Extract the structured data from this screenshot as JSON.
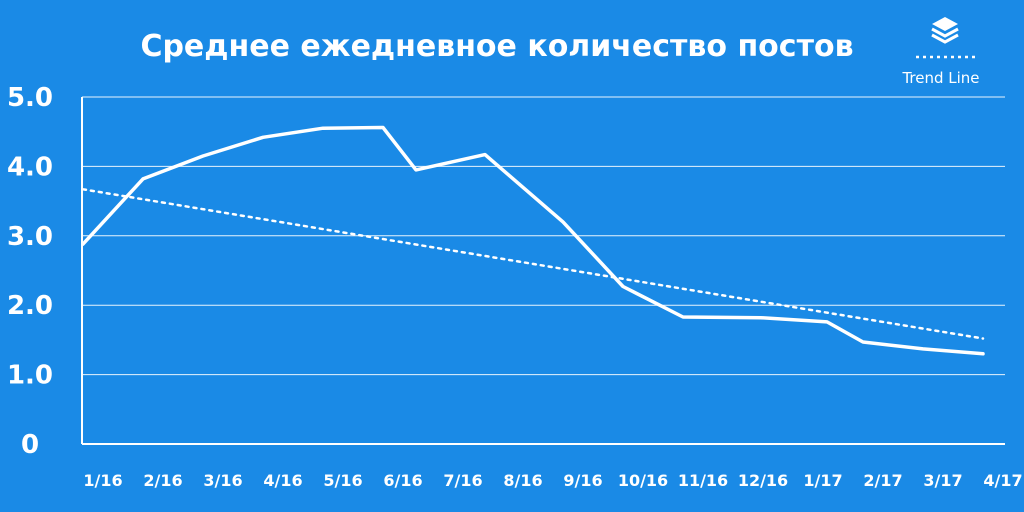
{
  "colors": {
    "background": "#1a8ae6",
    "foreground": "#ffffff"
  },
  "legend": {
    "icon": "layers-icon",
    "trend_label": "Trend Line",
    "placement": "top-right"
  },
  "chart_data": {
    "type": "line",
    "title": "Среднее ежедневное количество постов",
    "xlabel": "",
    "ylabel": "",
    "categories": [
      "1/16",
      "2/16",
      "3/16",
      "4/16",
      "5/16",
      "6/16",
      "7/16",
      "8/16",
      "9/16",
      "10/16",
      "11/16",
      "12/16",
      "1/17",
      "2/17",
      "3/17",
      "4/17"
    ],
    "y_tick_labels": [
      "0",
      "1.0",
      "2.0",
      "3.0",
      "4.0",
      "5.0"
    ],
    "ylim": [
      0,
      5
    ],
    "grid": true,
    "series": [
      {
        "values": [
          2.88,
          3.82,
          4.15,
          4.42,
          4.55,
          4.56,
          3.95,
          4.17,
          3.2,
          2.27,
          1.83,
          1.82,
          1.76,
          1.47,
          1.37,
          1.3
        ]
      }
    ],
    "points": [
      {
        "x": 0.0,
        "y": 2.88
      },
      {
        "x": 1.0,
        "y": 3.82
      },
      {
        "x": 2.0,
        "y": 4.15
      },
      {
        "x": 3.0,
        "y": 4.42
      },
      {
        "x": 4.0,
        "y": 4.55
      },
      {
        "x": 5.0,
        "y": 4.56
      },
      {
        "x": 5.55,
        "y": 3.95
      },
      {
        "x": 6.7,
        "y": 4.17
      },
      {
        "x": 8.0,
        "y": 3.2
      },
      {
        "x": 9.0,
        "y": 2.27
      },
      {
        "x": 10.0,
        "y": 1.83
      },
      {
        "x": 11.3,
        "y": 1.82
      },
      {
        "x": 12.4,
        "y": 1.76
      },
      {
        "x": 13.0,
        "y": 1.47
      },
      {
        "x": 14.0,
        "y": 1.37
      },
      {
        "x": 15.0,
        "y": 1.3
      }
    ],
    "trend_line": {
      "label": "Trend Line",
      "style": "dotted",
      "start": {
        "x": 0,
        "y": 3.67
      },
      "end": {
        "x": 15,
        "y": 1.52
      }
    }
  }
}
